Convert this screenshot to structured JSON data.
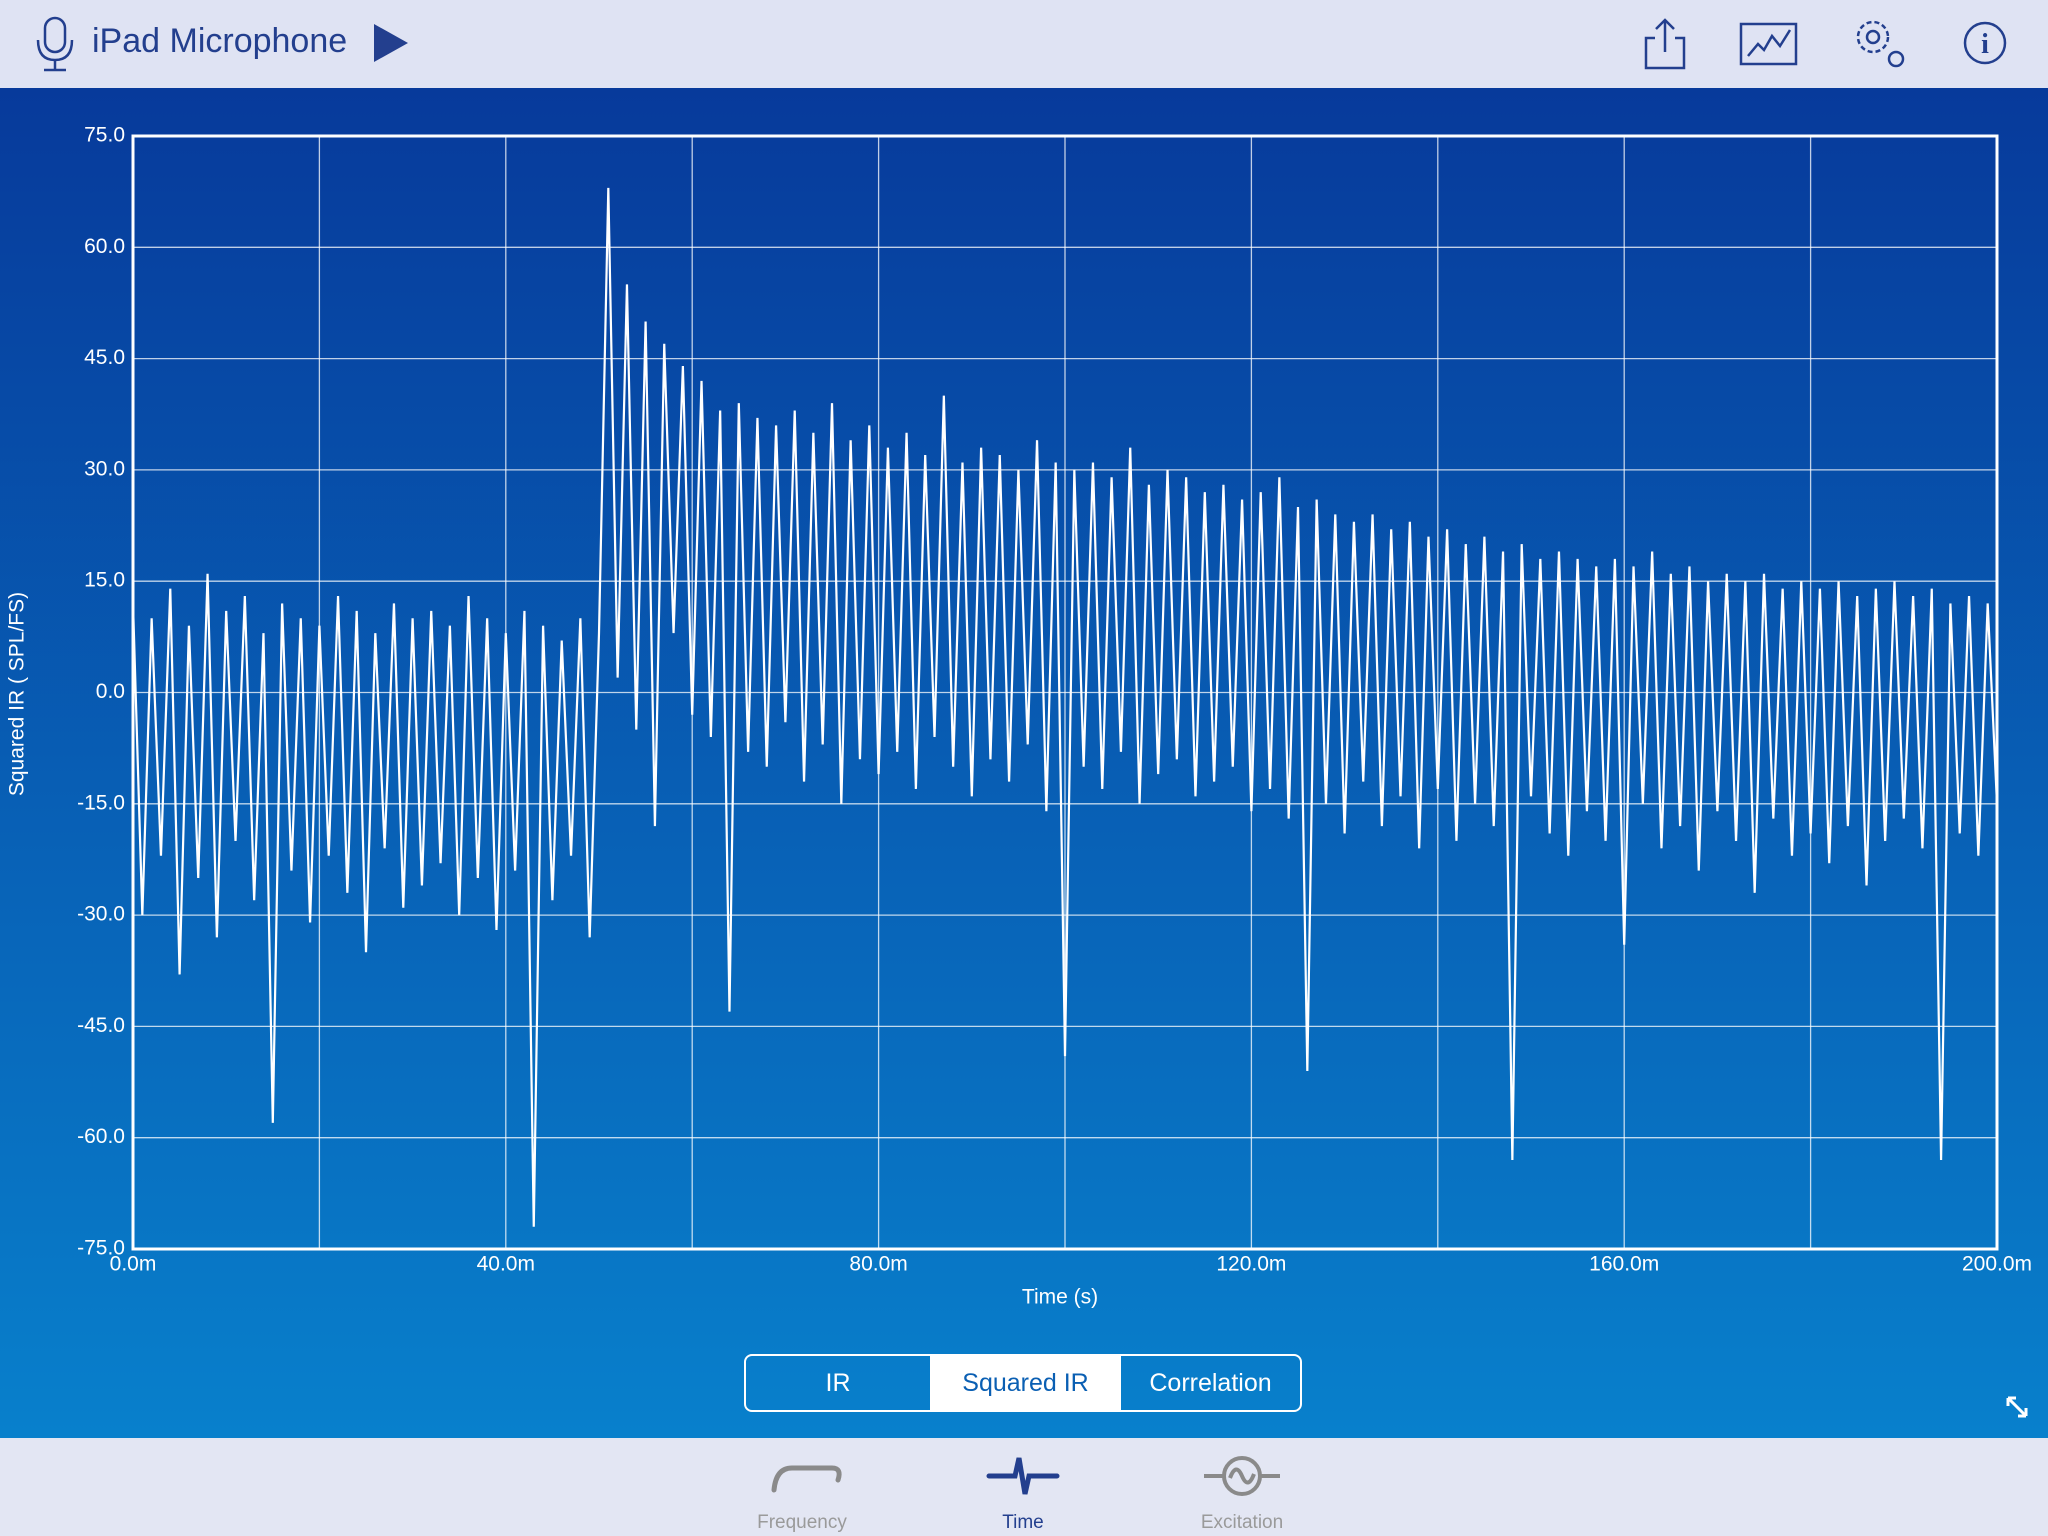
{
  "header": {
    "title": "iPad Microphone"
  },
  "chart_data": {
    "type": "line",
    "y_label": "Squared IR ( SPL/FS)",
    "x_label": "Time (s)",
    "xlim": [
      0,
      0.2
    ],
    "ylim": [
      -75,
      75
    ],
    "xticks": [
      {
        "value": 0,
        "label": "0.0m"
      },
      {
        "value": 0.02,
        "label": null
      },
      {
        "value": 0.04,
        "label": "40.0m"
      },
      {
        "value": 0.06,
        "label": null
      },
      {
        "value": 0.08,
        "label": "80.0m"
      },
      {
        "value": 0.1,
        "label": null
      },
      {
        "value": 0.12,
        "label": "120.0m"
      },
      {
        "value": 0.14,
        "label": null
      },
      {
        "value": 0.16,
        "label": "160.0m"
      },
      {
        "value": 0.18,
        "label": null
      },
      {
        "value": 0.2,
        "label": "200.0m"
      }
    ],
    "yticks": [
      {
        "value": -75,
        "label": "-75.0"
      },
      {
        "value": -60,
        "label": "-60.0"
      },
      {
        "value": -45,
        "label": "-45.0"
      },
      {
        "value": -30,
        "label": "-30.0"
      },
      {
        "value": -15,
        "label": "-15.0"
      },
      {
        "value": 0,
        "label": "0.0"
      },
      {
        "value": 15,
        "label": "15.0"
      },
      {
        "value": 30,
        "label": "30.0"
      },
      {
        "value": 45,
        "label": "45.0"
      },
      {
        "value": 60,
        "label": "60.0"
      },
      {
        "value": 75,
        "label": "75.0"
      }
    ],
    "grid": true,
    "x": [
      0,
      0.001,
      0.002,
      0.003,
      0.004,
      0.005,
      0.006,
      0.007,
      0.008,
      0.009,
      0.01,
      0.011,
      0.012,
      0.013,
      0.014,
      0.015,
      0.016,
      0.017,
      0.018,
      0.019,
      0.02,
      0.021,
      0.022,
      0.023,
      0.024,
      0.025,
      0.026,
      0.027,
      0.028,
      0.029,
      0.03,
      0.031,
      0.032,
      0.033,
      0.034,
      0.035,
      0.036,
      0.037,
      0.038,
      0.039,
      0.04,
      0.041,
      0.042,
      0.043,
      0.044,
      0.045,
      0.046,
      0.047,
      0.048,
      0.049,
      0.05,
      0.051,
      0.052,
      0.053,
      0.054,
      0.055,
      0.056,
      0.057,
      0.058,
      0.059,
      0.06,
      0.061,
      0.062,
      0.063,
      0.064,
      0.065,
      0.066,
      0.067,
      0.068,
      0.069,
      0.07,
      0.071,
      0.072,
      0.073,
      0.074,
      0.075,
      0.076,
      0.077,
      0.078,
      0.079,
      0.08,
      0.081,
      0.082,
      0.083,
      0.084,
      0.085,
      0.086,
      0.087,
      0.088,
      0.089,
      0.09,
      0.091,
      0.092,
      0.093,
      0.094,
      0.095,
      0.096,
      0.097,
      0.098,
      0.099,
      0.1,
      0.101,
      0.102,
      0.103,
      0.104,
      0.105,
      0.106,
      0.107,
      0.108,
      0.109,
      0.11,
      0.111,
      0.112,
      0.113,
      0.114,
      0.115,
      0.116,
      0.117,
      0.118,
      0.119,
      0.12,
      0.121,
      0.122,
      0.123,
      0.124,
      0.125,
      0.126,
      0.127,
      0.128,
      0.129,
      0.13,
      0.131,
      0.132,
      0.133,
      0.134,
      0.135,
      0.136,
      0.137,
      0.138,
      0.139,
      0.14,
      0.141,
      0.142,
      0.143,
      0.144,
      0.145,
      0.146,
      0.147,
      0.148,
      0.149,
      0.15,
      0.151,
      0.152,
      0.153,
      0.154,
      0.155,
      0.156,
      0.157,
      0.158,
      0.159,
      0.16,
      0.161,
      0.162,
      0.163,
      0.164,
      0.165,
      0.166,
      0.167,
      0.168,
      0.169,
      0.17,
      0.171,
      0.172,
      0.173,
      0.174,
      0.175,
      0.176,
      0.177,
      0.178,
      0.179,
      0.18,
      0.181,
      0.182,
      0.183,
      0.184,
      0.185,
      0.186,
      0.187,
      0.188,
      0.189,
      0.19,
      0.191,
      0.192,
      0.193,
      0.194,
      0.195,
      0.196,
      0.197,
      0.198,
      0.199,
      0.2
    ],
    "series": [
      {
        "color": "#ffffff",
        "values": [
          12,
          -30,
          10,
          -22,
          14,
          -38,
          9,
          -25,
          16,
          -33,
          11,
          -20,
          13,
          -28,
          8,
          -58,
          12,
          -24,
          10,
          -31,
          9,
          -22,
          13,
          -27,
          11,
          -35,
          8,
          -21,
          12,
          -29,
          10,
          -26,
          11,
          -23,
          9,
          -30,
          13,
          -25,
          10,
          -32,
          8,
          -24,
          11,
          -72,
          9,
          -28,
          7,
          -22,
          10,
          -33,
          8,
          68,
          2,
          55,
          -5,
          50,
          -18,
          47,
          8,
          44,
          -3,
          42,
          -6,
          38,
          -43,
          39,
          -8,
          37,
          -10,
          36,
          -4,
          38,
          -12,
          35,
          -7,
          39,
          -15,
          34,
          -9,
          36,
          -11,
          33,
          -8,
          35,
          -13,
          32,
          -6,
          40,
          -10,
          31,
          -14,
          33,
          -9,
          32,
          -12,
          30,
          -7,
          34,
          -16,
          31,
          -49,
          30,
          -10,
          31,
          -13,
          29,
          -8,
          33,
          -15,
          28,
          -11,
          30,
          -9,
          29,
          -14,
          27,
          -12,
          28,
          -10,
          26,
          -16,
          27,
          -13,
          29,
          -17,
          25,
          -51,
          26,
          -15,
          24,
          -19,
          23,
          -12,
          24,
          -18,
          22,
          -14,
          23,
          -21,
          21,
          -13,
          22,
          -20,
          20,
          -15,
          21,
          -18,
          19,
          -63,
          20,
          -14,
          18,
          -19,
          19,
          -22,
          18,
          -16,
          17,
          -20,
          18,
          -34,
          17,
          -15,
          19,
          -21,
          16,
          -18,
          17,
          -24,
          15,
          -16,
          16,
          -20,
          15,
          -27,
          16,
          -17,
          14,
          -22,
          15,
          -19,
          14,
          -23,
          15,
          -18,
          13,
          -26,
          14,
          -20,
          15,
          -17,
          13,
          -21,
          14,
          -63,
          12,
          -19,
          13,
          -22,
          12,
          -15
        ]
      }
    ]
  },
  "view_tabs": {
    "items": [
      "IR",
      "Squared IR",
      "Correlation"
    ],
    "selected": 1
  },
  "bottom_tabs": {
    "items": [
      "Frequency",
      "Time",
      "Excitation"
    ],
    "selected": 1
  }
}
